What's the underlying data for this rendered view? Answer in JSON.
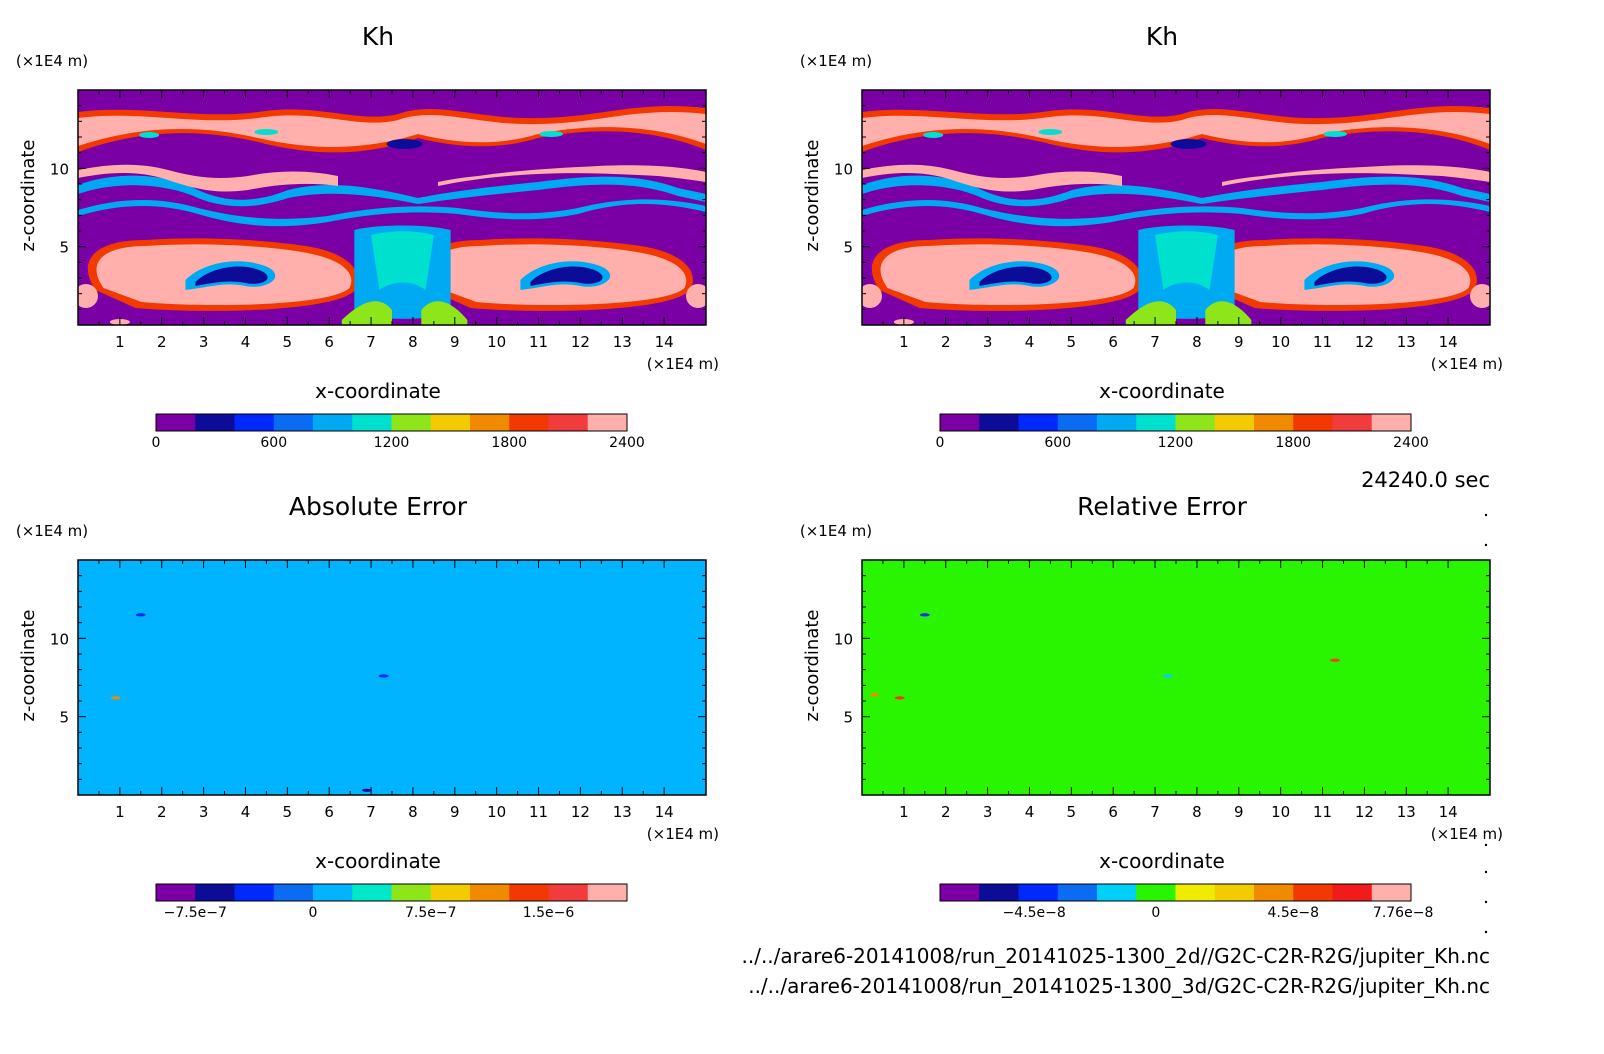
{
  "time_label": "24240.0 sec",
  "file_paths": [
    "../../arare6-20141008/run_20141025-1300_2d//G2C-C2R-R2G/jupiter_Kh.nc",
    "../../arare6-20141008/run_20141025-1300_3d/G2C-C2R-R2G/jupiter_Kh.nc"
  ],
  "colors": {
    "kh_levels": [
      "#7a00a6",
      "#0c0c99",
      "#0028ff",
      "#0a6cf2",
      "#00aaf2",
      "#00e0cf",
      "#8ee61a",
      "#f2cc00",
      "#f28a00",
      "#f23a00",
      "#f23c3c",
      "#ffb0ac"
    ],
    "abs_err_levels": [
      "#7a00a6",
      "#0c0c99",
      "#0028ff",
      "#0a6cf2",
      "#00b4ff",
      "#00e8c8",
      "#8ee61a",
      "#f2cc00",
      "#f28a00",
      "#f23a00",
      "#f23c3c",
      "#ffb0ac"
    ],
    "rel_err_levels": [
      "#7a00a6",
      "#0c0c99",
      "#0028ff",
      "#0a6cf2",
      "#00d0f8",
      "#2af500",
      "#f0ec00",
      "#f2cc00",
      "#f28a00",
      "#f23a00",
      "#f21a1a",
      "#ffb0ac"
    ]
  },
  "chart_data": [
    {
      "type": "heatmap",
      "title": "Kh",
      "xlabel": "x-coordinate",
      "ylabel": "z-coordinate",
      "x_unit": "(×1E4 m)",
      "y_unit": "(×1E4 m)",
      "xlim": [
        0,
        15
      ],
      "ylim": [
        0,
        15
      ],
      "x_ticks": [
        1,
        2,
        3,
        4,
        5,
        6,
        7,
        8,
        9,
        10,
        11,
        12,
        13,
        14
      ],
      "y_ticks": [
        5,
        10
      ],
      "colorbar_ticks": [
        "0",
        "600",
        "1200",
        "1800",
        "2400"
      ],
      "colorbar_levels": 12
    },
    {
      "type": "heatmap",
      "title": "Kh",
      "xlabel": "x-coordinate",
      "ylabel": "z-coordinate",
      "x_unit": "(×1E4 m)",
      "y_unit": "(×1E4 m)",
      "xlim": [
        0,
        15
      ],
      "ylim": [
        0,
        15
      ],
      "x_ticks": [
        1,
        2,
        3,
        4,
        5,
        6,
        7,
        8,
        9,
        10,
        11,
        12,
        13,
        14
      ],
      "y_ticks": [
        5,
        10
      ],
      "colorbar_ticks": [
        "0",
        "600",
        "1200",
        "1800",
        "2400"
      ],
      "colorbar_levels": 12
    },
    {
      "type": "heatmap",
      "title": "Absolute Error",
      "xlabel": "x-coordinate",
      "ylabel": "z-coordinate",
      "x_unit": "(×1E4 m)",
      "y_unit": "(×1E4 m)",
      "xlim": [
        0,
        15
      ],
      "ylim": [
        0,
        15
      ],
      "x_ticks": [
        1,
        2,
        3,
        4,
        5,
        6,
        7,
        8,
        9,
        10,
        11,
        12,
        13,
        14
      ],
      "y_ticks": [
        5,
        10
      ],
      "colorbar_ticks": [
        "−7.5e−7",
        "0",
        "7.5e−7",
        "1.5e−6"
      ],
      "colorbar_levels": 12,
      "background_level": 4
    },
    {
      "type": "heatmap",
      "title": "Relative Error",
      "xlabel": "x-coordinate",
      "ylabel": "z-coordinate",
      "x_unit": "(×1E4 m)",
      "y_unit": "(×1E4 m)",
      "xlim": [
        0,
        15
      ],
      "ylim": [
        0,
        15
      ],
      "x_ticks": [
        1,
        2,
        3,
        4,
        5,
        6,
        7,
        8,
        9,
        10,
        11,
        12,
        13,
        14
      ],
      "y_ticks": [
        5,
        10
      ],
      "colorbar_ticks": [
        "−4.5e−8",
        "0",
        "4.5e−8",
        "7.76e−8"
      ],
      "colorbar_levels": 12,
      "background_level": 5
    }
  ]
}
